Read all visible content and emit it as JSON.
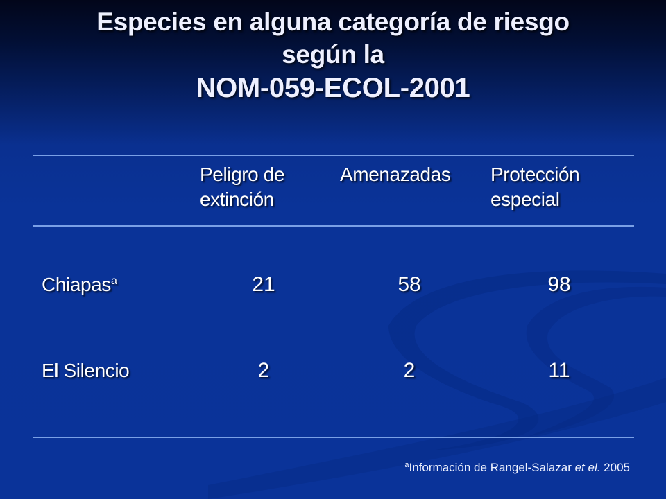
{
  "slide": {
    "title_lines": [
      "Especies en alguna categoría de riesgo",
      "según la",
      "NOM-059-ECOL-2001"
    ],
    "background_colors": {
      "top": "#02061a",
      "main": "#0a3399",
      "rule": "#7aa0e6"
    }
  },
  "table": {
    "columns": [
      {
        "lines": [
          "Peligro de",
          "extinción"
        ]
      },
      {
        "lines": [
          "Amenazadas"
        ]
      },
      {
        "lines": [
          "Protección",
          "especial"
        ]
      }
    ],
    "rows": [
      {
        "label": "Chiapas",
        "label_superscript": "a",
        "values": [
          "21",
          "58",
          "98"
        ]
      },
      {
        "label": "El Silencio",
        "label_superscript": "",
        "values": [
          "2",
          "2",
          "11"
        ]
      }
    ]
  },
  "footnote": {
    "superscript": "a",
    "text_before": "Información de Rangel-Salazar ",
    "italic": "et el.",
    "text_after": " 2005"
  }
}
